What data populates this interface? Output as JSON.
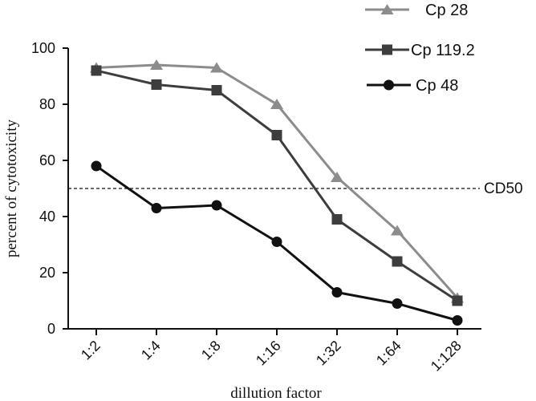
{
  "chart_data": {
    "type": "line",
    "title": "",
    "xlabel": "dillution factor",
    "ylabel": "percent  of cytotoxicity",
    "categories": [
      "1:2",
      "1:4",
      "1:8",
      "1:16",
      "1:32",
      "1:64",
      "1:128"
    ],
    "ylim": [
      0,
      100
    ],
    "yticks": [
      0,
      20,
      40,
      60,
      80,
      100
    ],
    "grid": false,
    "legend_position": "top-right",
    "series": [
      {
        "name": "Cp 28",
        "marker": "triangle",
        "color": "#8c8c8c",
        "values": [
          93,
          94,
          93,
          80,
          54,
          35,
          11
        ]
      },
      {
        "name": "Cp 119.2",
        "marker": "square",
        "color": "#3d3d3d",
        "values": [
          92,
          87,
          85,
          69,
          39,
          24,
          10
        ]
      },
      {
        "name": "Cp 48",
        "marker": "circle",
        "color": "#111111",
        "values": [
          58,
          43,
          44,
          31,
          13,
          9,
          3
        ]
      }
    ],
    "reference_line": {
      "label": "CD50",
      "y": 50,
      "style": "dashed"
    }
  }
}
